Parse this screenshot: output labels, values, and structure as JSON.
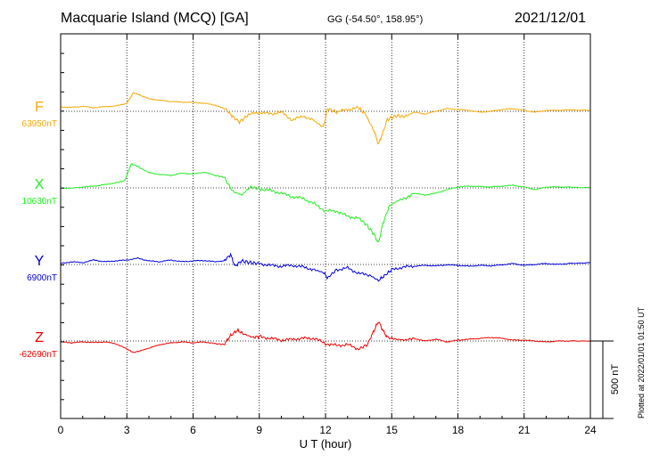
{
  "header": {
    "station": "Macquarie Island (MCQ)  [GA]",
    "coords": "GG (-54.50°, 158.95°)",
    "date": "2021/12/01"
  },
  "footer": {
    "plotted": "Plotted at 2022/01/01 01:50 UT"
  },
  "chart_data": {
    "type": "line",
    "xlabel": "U T (hour)",
    "xlim": [
      0,
      24
    ],
    "xticks": [
      "0",
      "3",
      "6",
      "9",
      "12",
      "15",
      "18",
      "21",
      "24"
    ],
    "scale_bar_label": "500 nT",
    "grid": true,
    "series": [
      {
        "name": "F",
        "baseline_label": "63950nT",
        "color": "#f5a800",
        "points": [
          [
            0,
            25
          ],
          [
            0.5,
            22
          ],
          [
            1,
            28
          ],
          [
            1.5,
            20
          ],
          [
            2,
            26
          ],
          [
            2.5,
            30
          ],
          [
            3,
            45
          ],
          [
            3.3,
            105
          ],
          [
            3.6,
            90
          ],
          [
            4,
            70
          ],
          [
            4.5,
            62
          ],
          [
            5,
            55
          ],
          [
            5.5,
            52
          ],
          [
            6,
            50
          ],
          [
            6.5,
            45
          ],
          [
            7,
            35
          ],
          [
            7.5,
            10
          ],
          [
            7.8,
            -30
          ],
          [
            8.1,
            -60
          ],
          [
            8.5,
            -20
          ],
          [
            9,
            -5
          ],
          [
            9.5,
            -15
          ],
          [
            10,
            -5
          ],
          [
            10.5,
            -50
          ],
          [
            11,
            -25
          ],
          [
            11.5,
            -55
          ],
          [
            11.9,
            -90
          ],
          [
            12.1,
            15
          ],
          [
            12.5,
            -5
          ],
          [
            13,
            10
          ],
          [
            13.5,
            20
          ],
          [
            13.8,
            -15
          ],
          [
            14.2,
            -110
          ],
          [
            14.4,
            -185
          ],
          [
            14.6,
            -120
          ],
          [
            14.8,
            -45
          ],
          [
            15.2,
            -25
          ],
          [
            15.6,
            -30
          ],
          [
            16,
            -5
          ],
          [
            16.5,
            -15
          ],
          [
            17,
            0
          ],
          [
            17.5,
            15
          ],
          [
            18,
            10
          ],
          [
            18.5,
            5
          ],
          [
            19,
            -5
          ],
          [
            19.5,
            0
          ],
          [
            20,
            10
          ],
          [
            20.5,
            15
          ],
          [
            21,
            5
          ],
          [
            21.5,
            -5
          ],
          [
            22,
            5
          ],
          [
            22.5,
            5
          ],
          [
            23,
            8
          ],
          [
            24,
            5
          ]
        ]
      },
      {
        "name": "X",
        "baseline_label": "10630nT",
        "color": "#22ee22",
        "points": [
          [
            0,
            0
          ],
          [
            0.5,
            -2
          ],
          [
            1,
            5
          ],
          [
            1.5,
            10
          ],
          [
            2,
            18
          ],
          [
            2.5,
            28
          ],
          [
            2.9,
            40
          ],
          [
            3.2,
            135
          ],
          [
            3.5,
            120
          ],
          [
            4,
            85
          ],
          [
            4.5,
            75
          ],
          [
            5,
            70
          ],
          [
            5.5,
            82
          ],
          [
            6,
            78
          ],
          [
            6.5,
            88
          ],
          [
            7,
            70
          ],
          [
            7.4,
            60
          ],
          [
            7.8,
            -20
          ],
          [
            8.2,
            -40
          ],
          [
            8.6,
            5
          ],
          [
            9,
            -5
          ],
          [
            9.5,
            -15
          ],
          [
            10,
            -30
          ],
          [
            10.5,
            -50
          ],
          [
            11,
            -60
          ],
          [
            11.5,
            -90
          ],
          [
            12,
            -130
          ],
          [
            12.5,
            -130
          ],
          [
            13,
            -160
          ],
          [
            13.5,
            -170
          ],
          [
            13.8,
            -200
          ],
          [
            14.2,
            -260
          ],
          [
            14.4,
            -310
          ],
          [
            14.6,
            -200
          ],
          [
            14.9,
            -100
          ],
          [
            15.3,
            -70
          ],
          [
            15.7,
            -55
          ],
          [
            16,
            -30
          ],
          [
            16.5,
            -40
          ],
          [
            17,
            -30
          ],
          [
            17.5,
            -10
          ],
          [
            18,
            5
          ],
          [
            18.5,
            10
          ],
          [
            19,
            8
          ],
          [
            19.5,
            5
          ],
          [
            20,
            10
          ],
          [
            20.5,
            15
          ],
          [
            21,
            5
          ],
          [
            21.5,
            -10
          ],
          [
            22,
            5
          ],
          [
            22.5,
            5
          ],
          [
            23,
            5
          ],
          [
            24,
            0
          ]
        ]
      },
      {
        "name": "Y",
        "baseline_label": "6900nT",
        "color": "#0000dd",
        "points": [
          [
            0,
            5
          ],
          [
            0.5,
            15
          ],
          [
            1,
            10
          ],
          [
            1.5,
            25
          ],
          [
            2,
            15
          ],
          [
            2.5,
            20
          ],
          [
            3,
            25
          ],
          [
            3.5,
            35
          ],
          [
            4,
            20
          ],
          [
            4.5,
            15
          ],
          [
            5,
            25
          ],
          [
            5.5,
            15
          ],
          [
            6,
            20
          ],
          [
            6.5,
            22
          ],
          [
            7,
            15
          ],
          [
            7.4,
            20
          ],
          [
            7.7,
            55
          ],
          [
            7.9,
            -10
          ],
          [
            8.2,
            20
          ],
          [
            8.6,
            10
          ],
          [
            9,
            5
          ],
          [
            9.5,
            -5
          ],
          [
            10,
            -10
          ],
          [
            10.5,
            -5
          ],
          [
            11,
            -15
          ],
          [
            11.5,
            -30
          ],
          [
            11.9,
            -45
          ],
          [
            12.1,
            -75
          ],
          [
            12.5,
            -30
          ],
          [
            13,
            -20
          ],
          [
            13.5,
            -50
          ],
          [
            14,
            -60
          ],
          [
            14.4,
            -90
          ],
          [
            14.7,
            -60
          ],
          [
            15,
            -30
          ],
          [
            15.5,
            -15
          ],
          [
            16,
            -10
          ],
          [
            16.5,
            -5
          ],
          [
            17,
            -8
          ],
          [
            17.5,
            -2
          ],
          [
            18,
            -5
          ],
          [
            18.5,
            -10
          ],
          [
            19,
            -5
          ],
          [
            19.5,
            -8
          ],
          [
            20,
            -2
          ],
          [
            20.5,
            5
          ],
          [
            21,
            -5
          ],
          [
            21.5,
            0
          ],
          [
            22,
            5
          ],
          [
            22.5,
            0
          ],
          [
            23,
            5
          ],
          [
            24,
            10
          ]
        ]
      },
      {
        "name": "Z",
        "baseline_label": "-62690nT",
        "color": "#ee0000",
        "points": [
          [
            0,
            -5
          ],
          [
            0.5,
            -10
          ],
          [
            1,
            -5
          ],
          [
            1.5,
            -8
          ],
          [
            2,
            -5
          ],
          [
            2.5,
            -15
          ],
          [
            3,
            -45
          ],
          [
            3.3,
            -65
          ],
          [
            3.6,
            -55
          ],
          [
            4,
            -40
          ],
          [
            4.5,
            -20
          ],
          [
            5,
            -10
          ],
          [
            5.5,
            -5
          ],
          [
            6,
            -10
          ],
          [
            6.5,
            -5
          ],
          [
            7,
            -15
          ],
          [
            7.4,
            -20
          ],
          [
            7.7,
            30
          ],
          [
            8,
            60
          ],
          [
            8.3,
            40
          ],
          [
            8.7,
            20
          ],
          [
            9,
            25
          ],
          [
            9.5,
            15
          ],
          [
            10,
            5
          ],
          [
            10.5,
            10
          ],
          [
            11,
            15
          ],
          [
            11.5,
            15
          ],
          [
            12,
            -15
          ],
          [
            12.5,
            -25
          ],
          [
            13,
            -20
          ],
          [
            13.5,
            -45
          ],
          [
            13.9,
            -20
          ],
          [
            14.2,
            60
          ],
          [
            14.4,
            110
          ],
          [
            14.6,
            60
          ],
          [
            14.8,
            20
          ],
          [
            15.2,
            10
          ],
          [
            15.6,
            5
          ],
          [
            16,
            15
          ],
          [
            16.5,
            0
          ],
          [
            17,
            10
          ],
          [
            17.5,
            -5
          ],
          [
            18,
            5
          ],
          [
            18.5,
            10
          ],
          [
            19,
            15
          ],
          [
            19.5,
            20
          ],
          [
            20,
            15
          ],
          [
            20.5,
            5
          ],
          [
            21,
            5
          ],
          [
            21.5,
            0
          ],
          [
            22,
            -5
          ],
          [
            22.5,
            0
          ],
          [
            23,
            0
          ],
          [
            24,
            0
          ]
        ]
      }
    ]
  }
}
